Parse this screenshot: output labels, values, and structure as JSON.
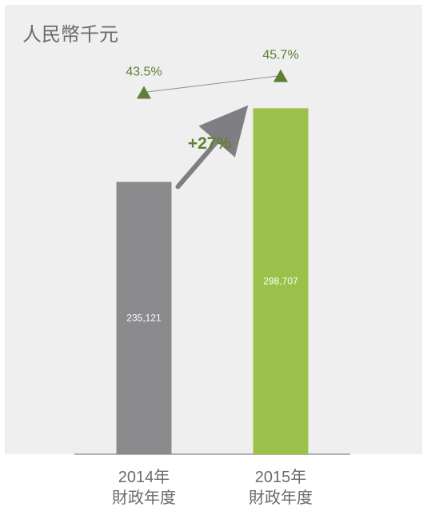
{
  "chart_data": {
    "type": "bar",
    "unit_label": "人民幣千元",
    "categories": [
      {
        "year": "2014年",
        "period": "財政年度"
      },
      {
        "year": "2015年",
        "period": "財政年度"
      }
    ],
    "values": [
      235121,
      298707
    ],
    "value_labels": [
      "235,121",
      "298,707"
    ],
    "bar_colors": [
      "#8b8b8e",
      "#9cc14a"
    ],
    "secondary_series": {
      "values_percent": [
        43.5,
        45.7
      ],
      "labels": [
        "43.5%",
        "45.7%"
      ],
      "marker": "triangle",
      "color": "#5f7f34"
    },
    "growth_annotation": {
      "label": "+27%",
      "color": "#5f7f34",
      "arrow_color": "#7f7f83"
    },
    "ylim": [
      0,
      330000
    ],
    "grid": false,
    "legend": "none",
    "panel_color": "#efefef",
    "text_color": "#6b6b6b"
  }
}
